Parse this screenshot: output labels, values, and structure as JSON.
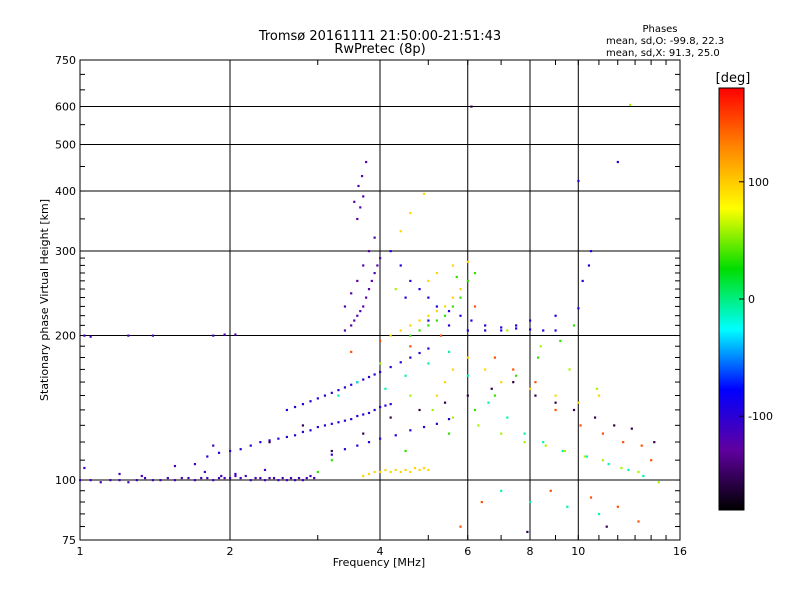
{
  "chart_data": {
    "type": "scatter",
    "title": "Tromsø 20161111 21:50:00-21:51:43",
    "subtitle": "RwPretec (8p)",
    "xlabel": "Frequency [MHz]",
    "ylabel": "Stationary phase Virtual Height [km]",
    "x_scale": "log",
    "y_scale": "log",
    "xlim": [
      1,
      16
    ],
    "ylim": [
      75,
      750
    ],
    "x_ticks": [
      1,
      2,
      4,
      6,
      8,
      10,
      16
    ],
    "y_ticks": [
      75,
      100,
      200,
      300,
      400,
      500,
      600,
      750
    ],
    "grid": true,
    "stats": {
      "heading": "Phases",
      "line_o": "mean, sd,O: -99.8, 22.3",
      "line_x": "mean, sd,X:  91.3, 25.0"
    },
    "colorbar": {
      "label": "[deg]",
      "range": [
        -180,
        180
      ],
      "ticks": [
        100,
        0,
        -100
      ],
      "colors": [
        "#ff0000",
        "#ff8800",
        "#ffff00",
        "#00dd00",
        "#00ffff",
        "#0000ff",
        "#6000a0",
        "#000000"
      ]
    },
    "series": [
      {
        "points": [
          [
            1.0,
            100
          ],
          [
            1.05,
            100
          ],
          [
            1.1,
            99
          ],
          [
            1.15,
            100
          ],
          [
            1.2,
            100
          ],
          [
            1.25,
            99
          ],
          [
            1.3,
            100
          ],
          [
            1.35,
            101
          ],
          [
            1.4,
            100
          ],
          [
            1.45,
            100
          ],
          [
            1.5,
            101
          ],
          [
            1.55,
            100
          ],
          [
            1.6,
            101
          ],
          [
            1.65,
            101
          ],
          [
            1.7,
            100
          ],
          [
            1.75,
            101
          ],
          [
            1.8,
            101
          ],
          [
            1.85,
            100
          ],
          [
            1.9,
            101
          ],
          [
            1.95,
            101
          ],
          [
            2.0,
            101
          ],
          [
            2.05,
            102
          ],
          [
            2.1,
            101
          ],
          [
            2.15,
            102
          ],
          [
            2.2,
            100
          ],
          [
            2.25,
            101
          ],
          [
            2.3,
            101
          ],
          [
            2.35,
            100
          ],
          [
            2.4,
            101
          ],
          [
            2.45,
            101
          ],
          [
            2.5,
            100
          ],
          [
            2.55,
            101
          ],
          [
            2.6,
            100
          ],
          [
            2.65,
            101
          ],
          [
            2.7,
            100
          ],
          [
            2.75,
            101
          ],
          [
            2.8,
            100
          ],
          [
            2.85,
            101
          ],
          [
            2.9,
            102
          ],
          [
            2.95,
            101
          ],
          [
            1.02,
            200
          ],
          [
            1.05,
            199
          ],
          [
            1.25,
            200
          ],
          [
            1.4,
            200
          ],
          [
            1.85,
            200
          ],
          [
            1.95,
            201
          ],
          [
            2.05,
            201
          ],
          [
            1.02,
            106
          ],
          [
            1.2,
            103
          ],
          [
            1.33,
            102
          ],
          [
            1.55,
            107
          ],
          [
            1.7,
            108
          ],
          [
            1.78,
            104
          ],
          [
            1.85,
            118
          ],
          [
            1.92,
            102
          ],
          [
            2.05,
            103
          ],
          [
            2.35,
            105
          ]
        ],
        "phase": -115
      },
      {
        "points": [
          [
            1.8,
            112
          ],
          [
            1.9,
            114
          ],
          [
            2.0,
            115
          ],
          [
            2.1,
            116
          ],
          [
            2.2,
            118
          ],
          [
            2.3,
            120
          ],
          [
            2.4,
            121
          ],
          [
            2.5,
            122
          ],
          [
            2.6,
            123
          ],
          [
            2.7,
            124
          ],
          [
            2.8,
            126
          ],
          [
            2.9,
            127
          ],
          [
            3.0,
            129
          ],
          [
            3.1,
            130
          ],
          [
            3.2,
            131
          ],
          [
            3.3,
            132
          ],
          [
            3.4,
            133
          ],
          [
            3.5,
            134
          ],
          [
            3.6,
            136
          ],
          [
            3.7,
            137
          ],
          [
            3.8,
            138
          ],
          [
            3.9,
            140
          ],
          [
            4.0,
            142
          ],
          [
            4.1,
            143
          ],
          [
            4.2,
            144
          ],
          [
            2.6,
            140
          ],
          [
            2.7,
            142
          ],
          [
            2.8,
            144
          ],
          [
            2.9,
            146
          ],
          [
            3.0,
            148
          ],
          [
            3.1,
            150
          ],
          [
            3.2,
            152
          ],
          [
            3.3,
            154
          ],
          [
            3.4,
            156
          ],
          [
            3.5,
            158
          ],
          [
            3.6,
            160
          ],
          [
            3.7,
            162
          ],
          [
            3.8,
            164
          ],
          [
            3.9,
            166
          ],
          [
            4.0,
            168
          ],
          [
            4.2,
            172
          ],
          [
            4.4,
            176
          ],
          [
            4.6,
            180
          ],
          [
            4.8,
            184
          ],
          [
            5.0,
            188
          ],
          [
            3.2,
            113
          ],
          [
            3.4,
            116
          ],
          [
            3.6,
            118
          ],
          [
            3.8,
            120
          ],
          [
            4.0,
            122
          ],
          [
            4.3,
            124
          ],
          [
            4.6,
            127
          ],
          [
            4.9,
            129
          ],
          [
            5.2,
            131
          ],
          [
            5.5,
            134
          ]
        ],
        "phase": -100
      },
      {
        "points": [
          [
            3.4,
            205
          ],
          [
            3.5,
            210
          ],
          [
            3.55,
            215
          ],
          [
            3.6,
            220
          ],
          [
            3.65,
            225
          ],
          [
            3.7,
            230
          ],
          [
            3.75,
            240
          ],
          [
            3.8,
            250
          ],
          [
            3.85,
            260
          ],
          [
            3.9,
            270
          ],
          [
            3.95,
            280
          ],
          [
            4.0,
            290
          ],
          [
            3.4,
            230
          ],
          [
            3.5,
            245
          ],
          [
            3.6,
            260
          ],
          [
            3.7,
            280
          ],
          [
            3.8,
            300
          ],
          [
            3.9,
            320
          ],
          [
            3.6,
            350
          ],
          [
            3.65,
            370
          ],
          [
            3.7,
            390
          ],
          [
            3.62,
            410
          ],
          [
            3.68,
            430
          ],
          [
            3.55,
            380
          ],
          [
            3.75,
            460
          ]
        ],
        "phase": -125
      },
      {
        "points": [
          [
            4.2,
            300
          ],
          [
            4.4,
            280
          ],
          [
            4.6,
            260
          ],
          [
            4.8,
            250
          ],
          [
            5.0,
            240
          ],
          [
            5.2,
            230
          ],
          [
            5.5,
            225
          ],
          [
            5.8,
            220
          ],
          [
            6.1,
            215
          ],
          [
            6.5,
            210
          ],
          [
            7.0,
            208
          ],
          [
            7.5,
            207
          ],
          [
            8.0,
            206
          ],
          [
            8.5,
            205
          ],
          [
            9.0,
            205
          ],
          [
            4.5,
            240
          ],
          [
            5.0,
            215
          ],
          [
            5.5,
            210
          ],
          [
            6.0,
            205
          ],
          [
            6.5,
            205
          ],
          [
            7.0,
            205
          ],
          [
            7.5,
            210
          ],
          [
            8.0,
            215
          ],
          [
            9.0,
            220
          ],
          [
            10.0,
            228
          ],
          [
            10.2,
            260
          ],
          [
            10.5,
            280
          ],
          [
            10.6,
            300
          ],
          [
            10.0,
            420
          ],
          [
            12.0,
            460
          ]
        ],
        "phase": -95
      },
      {
        "points": [
          [
            3.7,
            102
          ],
          [
            3.8,
            103
          ],
          [
            3.9,
            104
          ],
          [
            4.0,
            104
          ],
          [
            4.1,
            105
          ],
          [
            4.2,
            104
          ],
          [
            4.3,
            105
          ],
          [
            4.4,
            104
          ],
          [
            4.5,
            105
          ],
          [
            4.6,
            104
          ],
          [
            4.7,
            106
          ],
          [
            4.8,
            105
          ],
          [
            4.9,
            106
          ],
          [
            5.0,
            105
          ],
          [
            4.2,
            200
          ],
          [
            4.4,
            205
          ],
          [
            4.6,
            210
          ],
          [
            4.8,
            215
          ],
          [
            5.0,
            220
          ],
          [
            5.2,
            225
          ],
          [
            5.4,
            230
          ],
          [
            5.6,
            240
          ],
          [
            5.8,
            250
          ],
          [
            5.0,
            260
          ],
          [
            5.2,
            270
          ],
          [
            5.6,
            280
          ],
          [
            6.0,
            285
          ],
          [
            4.4,
            330
          ],
          [
            4.6,
            360
          ],
          [
            4.9,
            395
          ],
          [
            5.2,
            150
          ],
          [
            5.4,
            160
          ],
          [
            5.6,
            170
          ],
          [
            6.0,
            180
          ],
          [
            6.5,
            170
          ],
          [
            7.0,
            160
          ],
          [
            8.0,
            155
          ],
          [
            9.0,
            150
          ],
          [
            10.0,
            145
          ],
          [
            11.0,
            150
          ]
        ],
        "phase": 95
      },
      {
        "points": [
          [
            4.6,
            200
          ],
          [
            4.8,
            205
          ],
          [
            5.0,
            210
          ],
          [
            5.2,
            215
          ],
          [
            5.4,
            220
          ],
          [
            5.6,
            230
          ],
          [
            5.8,
            240
          ],
          [
            6.0,
            260
          ],
          [
            6.2,
            270
          ],
          [
            5.7,
            265
          ],
          [
            3.0,
            104
          ],
          [
            3.2,
            110
          ],
          [
            4.5,
            115
          ],
          [
            5.5,
            125
          ],
          [
            6.2,
            140
          ],
          [
            6.8,
            150
          ],
          [
            7.5,
            165
          ],
          [
            8.3,
            180
          ],
          [
            9.2,
            195
          ],
          [
            9.8,
            210
          ]
        ],
        "phase": 35
      },
      {
        "points": [
          [
            3.3,
            150
          ],
          [
            3.6,
            160
          ],
          [
            4.1,
            155
          ],
          [
            4.5,
            165
          ],
          [
            5.0,
            175
          ],
          [
            5.5,
            185
          ],
          [
            6.0,
            165
          ],
          [
            6.6,
            145
          ],
          [
            7.2,
            135
          ],
          [
            7.8,
            125
          ],
          [
            8.5,
            120
          ],
          [
            9.3,
            115
          ],
          [
            10.4,
            112
          ],
          [
            11.5,
            108
          ],
          [
            12.6,
            105
          ],
          [
            13.5,
            102
          ],
          [
            7.0,
            95
          ],
          [
            8.0,
            90
          ],
          [
            9.5,
            88
          ],
          [
            11.0,
            85
          ]
        ],
        "phase": -10
      },
      {
        "points": [
          [
            3.5,
            185
          ],
          [
            4.0,
            195
          ],
          [
            4.6,
            190
          ],
          [
            5.3,
            200
          ],
          [
            6.2,
            230
          ],
          [
            6.8,
            180
          ],
          [
            7.4,
            170
          ],
          [
            8.2,
            160
          ],
          [
            9.0,
            140
          ],
          [
            10.1,
            130
          ],
          [
            11.2,
            125
          ],
          [
            12.3,
            120
          ],
          [
            13.4,
            118
          ],
          [
            14.0,
            110
          ],
          [
            8.8,
            95
          ],
          [
            10.6,
            92
          ],
          [
            12.0,
            88
          ],
          [
            13.2,
            82
          ],
          [
            6.4,
            90
          ],
          [
            5.8,
            80
          ]
        ],
        "phase": 150
      },
      {
        "points": [
          [
            2.4,
            120
          ],
          [
            2.8,
            130
          ],
          [
            3.2,
            115
          ],
          [
            3.7,
            125
          ],
          [
            4.2,
            135
          ],
          [
            4.8,
            140
          ],
          [
            5.4,
            145
          ],
          [
            6.0,
            150
          ],
          [
            6.7,
            155
          ],
          [
            7.4,
            160
          ],
          [
            8.2,
            150
          ],
          [
            9.0,
            145
          ],
          [
            9.8,
            140
          ],
          [
            10.8,
            135
          ],
          [
            11.8,
            130
          ],
          [
            12.8,
            128
          ],
          [
            14.2,
            120
          ],
          [
            7.9,
            78
          ],
          [
            11.4,
            80
          ],
          [
            6.1,
            600
          ]
        ],
        "phase": -155
      },
      {
        "points": [
          [
            4.0,
            175
          ],
          [
            4.6,
            150
          ],
          [
            5.1,
            140
          ],
          [
            5.6,
            135
          ],
          [
            6.3,
            130
          ],
          [
            7.0,
            125
          ],
          [
            7.8,
            120
          ],
          [
            8.6,
            118
          ],
          [
            9.4,
            115
          ],
          [
            10.3,
            112
          ],
          [
            11.2,
            110
          ],
          [
            12.2,
            106
          ],
          [
            13.2,
            104
          ],
          [
            14.5,
            99
          ],
          [
            10.9,
            155
          ],
          [
            9.6,
            170
          ],
          [
            8.4,
            190
          ],
          [
            7.2,
            205
          ],
          [
            4.3,
            250
          ],
          [
            12.7,
            605
          ]
        ],
        "phase": 60
      }
    ]
  }
}
